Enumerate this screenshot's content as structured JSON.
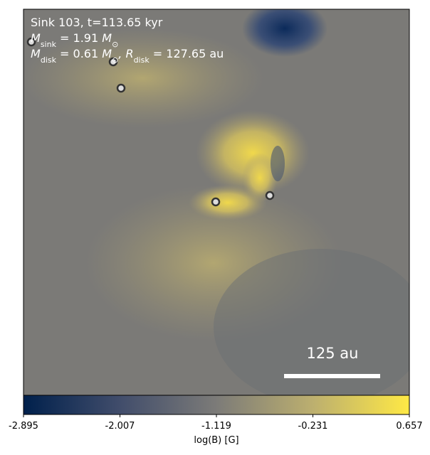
{
  "chart_data": {
    "type": "heatmap",
    "annotations": [
      [
        {
          "t": "Sink 103, t=113.65 kyr"
        }
      ],
      [
        {
          "t": "M"
        },
        {
          "sub": "sink"
        },
        {
          "t": " = 1.91 "
        },
        {
          "t": "M"
        },
        {
          "sub": "⊙"
        }
      ],
      [
        {
          "t": "M"
        },
        {
          "sub": "disk"
        },
        {
          "t": " = 0.61 "
        },
        {
          "t": "M"
        },
        {
          "sub": "⊙"
        },
        {
          "t": ", "
        },
        {
          "t": "R"
        },
        {
          "sub": "disk"
        },
        {
          "t": " = 127.65 au"
        }
      ]
    ],
    "scale_bar_label": "125 au",
    "colorbar": {
      "label": "log(B) [G]",
      "lim": [
        -2.895,
        0.657
      ],
      "ticks": [
        -2.895,
        -2.007,
        -1.119,
        -0.231,
        0.657
      ],
      "colors": [
        "#00204c",
        "#414d6b",
        "#7c7b78",
        "#bcaf6f",
        "#ffe945"
      ]
    }
  }
}
